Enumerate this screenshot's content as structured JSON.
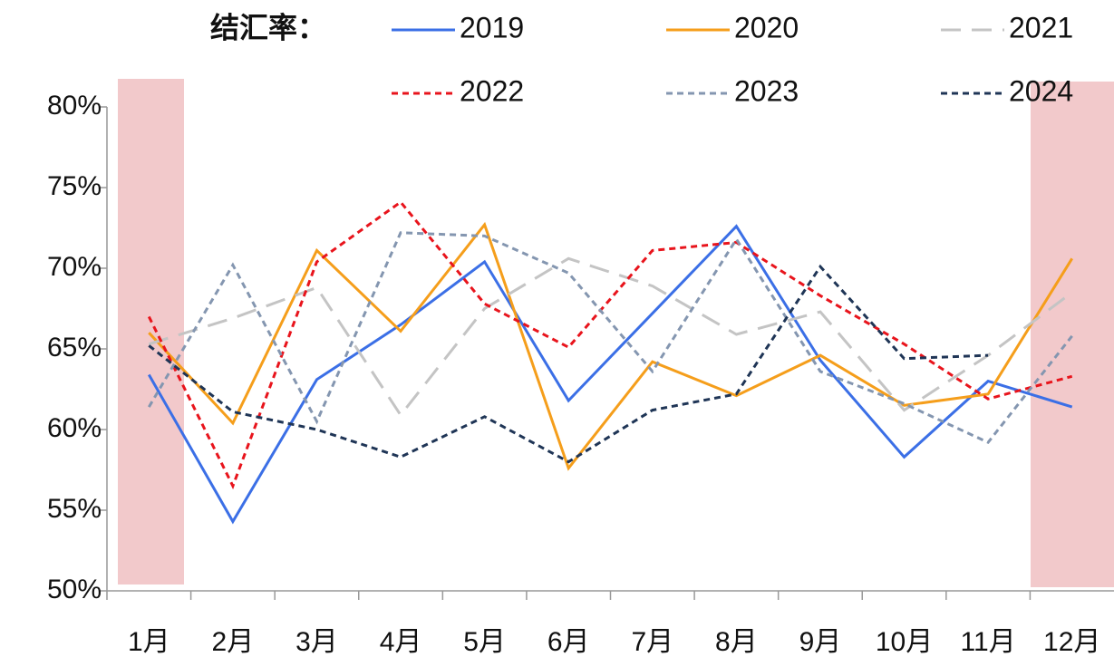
{
  "chart_data": {
    "type": "line",
    "legend_title": "结汇率：",
    "categories": [
      "1月",
      "2月",
      "3月",
      "4月",
      "5月",
      "6月",
      "7月",
      "8月",
      "9月",
      "10月",
      "11月",
      "12月"
    ],
    "series": [
      {
        "name": "2019",
        "color": "#3b6fe6",
        "dash": "solid",
        "values": [
          63.4,
          54.3,
          63.1,
          66.5,
          70.4,
          61.8,
          67.2,
          72.6,
          64.3,
          58.3,
          63.0,
          61.4
        ]
      },
      {
        "name": "2020",
        "color": "#f59e1b",
        "dash": "solid",
        "values": [
          66.0,
          60.4,
          71.1,
          66.1,
          72.7,
          57.6,
          64.2,
          62.1,
          64.6,
          61.5,
          62.2,
          70.6
        ]
      },
      {
        "name": "2021",
        "color": "#c4c4c4",
        "dash": "long",
        "values": [
          65.3,
          66.9,
          68.8,
          60.9,
          67.5,
          70.6,
          68.9,
          65.9,
          67.3,
          61.2,
          64.6,
          68.5
        ]
      },
      {
        "name": "2022",
        "color": "#e8141c",
        "dash": "short",
        "values": [
          67.0,
          56.5,
          70.4,
          74.1,
          67.8,
          65.1,
          71.1,
          71.6,
          68.3,
          65.3,
          61.9,
          63.3
        ]
      },
      {
        "name": "2023",
        "color": "#8496b0",
        "dash": "short",
        "values": [
          61.4,
          70.2,
          60.5,
          72.2,
          72.0,
          69.7,
          63.6,
          71.8,
          63.6,
          61.6,
          59.2,
          65.8
        ]
      },
      {
        "name": "2024",
        "color": "#1f3556",
        "dash": "short",
        "values": [
          65.2,
          61.1,
          60.0,
          58.3,
          60.8,
          58.0,
          61.2,
          62.2,
          70.1,
          64.4,
          64.6,
          null
        ]
      }
    ],
    "ylim": [
      50,
      80
    ],
    "yticks": [
      {
        "value": 50,
        "label": "50%"
      },
      {
        "value": 55,
        "label": "55%"
      },
      {
        "value": 60,
        "label": "60%"
      },
      {
        "value": 65,
        "label": "65%"
      },
      {
        "value": 70,
        "label": "70%"
      },
      {
        "value": 75,
        "label": "75%"
      },
      {
        "value": 80,
        "label": "80%"
      }
    ],
    "grid": false
  }
}
